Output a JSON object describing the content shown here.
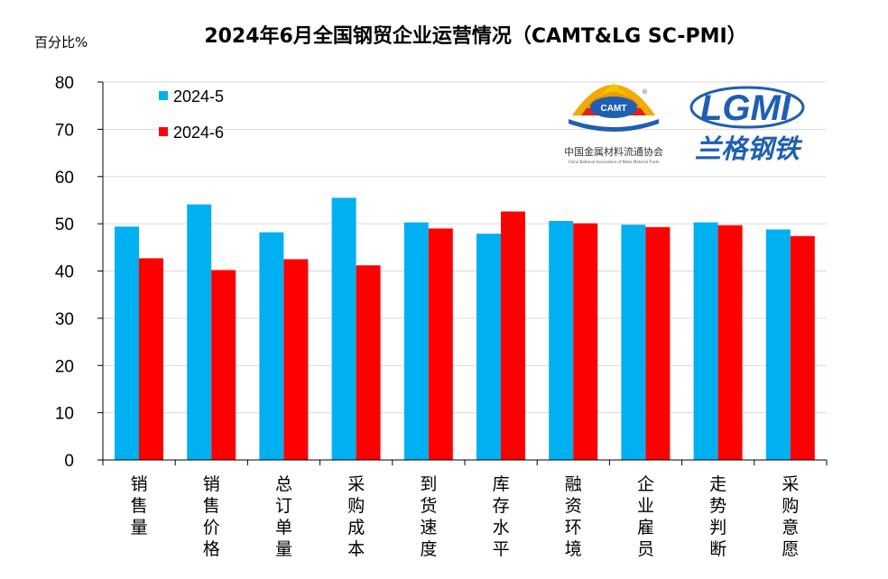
{
  "chart_data": {
    "type": "bar",
    "title": "2024年6月全国钢贸企业运营情况（CAMT&LG SC-PMI）",
    "ylabel": "百分比%",
    "ylim": [
      0,
      80
    ],
    "yticks": [
      0,
      10,
      20,
      30,
      40,
      50,
      60,
      70,
      80
    ],
    "grid": true,
    "legend_position": "top-left",
    "categories": [
      "销售量",
      "销售价格",
      "总订单量",
      "采购成本",
      "到货速度",
      "库存水平",
      "融资环境",
      "企业雇员",
      "走势判断",
      "采购意愿"
    ],
    "series": [
      {
        "name": "2024-5",
        "color": "#00b0f0",
        "values": [
          49.4,
          54.1,
          48.2,
          55.5,
          50.3,
          47.9,
          50.6,
          49.8,
          50.3,
          48.8
        ]
      },
      {
        "name": "2024-6",
        "color": "#ff0000",
        "values": [
          42.7,
          40.2,
          42.5,
          41.2,
          49.0,
          52.6,
          50.1,
          49.3,
          49.7,
          47.4
        ]
      }
    ]
  },
  "logos": {
    "camt_badge": "CAMT",
    "camt_name": "中国金属材料流通协会",
    "camt_english": "China National Association of Metal Material Trade",
    "lg_mark": "LGMI",
    "lg_name": "兰格钢铁",
    "registered": "®"
  }
}
